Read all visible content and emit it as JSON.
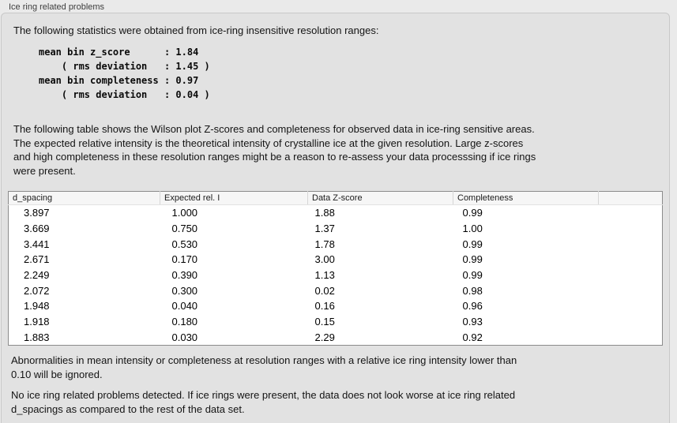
{
  "panel": {
    "title": "Ice ring related problems"
  },
  "intro": "The following statistics were obtained from ice-ring insensitive resolution ranges:",
  "stats": {
    "lines": [
      "mean bin z_score      : 1.84",
      "    ( rms deviation   : 1.45 )",
      "mean bin completeness : 0.97",
      "    ( rms deviation   : 0.04 )"
    ]
  },
  "description": {
    "lines": [
      "The following table shows the Wilson plot Z-scores and completeness for observed data in ice-ring sensitive areas.",
      "The expected relative intensity is the theoretical intensity of crystalline ice at the given resolution. Large z-scores",
      "and high completeness in these resolution ranges might be a reason to re-assess your data processsing if ice rings",
      "were present."
    ]
  },
  "table": {
    "headers": [
      "d_spacing",
      "Expected rel. I",
      "Data Z-score",
      "Completeness",
      ""
    ],
    "rows": [
      [
        "3.897",
        "1.000",
        "1.88",
        "0.99"
      ],
      [
        "3.669",
        "0.750",
        "1.37",
        "1.00"
      ],
      [
        "3.441",
        "0.530",
        "1.78",
        "0.99"
      ],
      [
        "2.671",
        "0.170",
        "3.00",
        "0.99"
      ],
      [
        "2.249",
        "0.390",
        "1.13",
        "0.99"
      ],
      [
        "2.072",
        "0.300",
        "0.02",
        "0.98"
      ],
      [
        "1.948",
        "0.040",
        "0.16",
        "0.96"
      ],
      [
        "1.918",
        "0.180",
        "0.15",
        "0.93"
      ],
      [
        "1.883",
        "0.030",
        "2.29",
        "0.92"
      ]
    ]
  },
  "ignore_note": {
    "lines": [
      "Abnormalities in mean intensity or completeness at resolution ranges with a relative ice ring intensity lower than",
      "0.10 will be ignored."
    ]
  },
  "conclusion": {
    "lines": [
      "No ice ring related problems detected. If ice rings were present, the data does not look worse at ice ring related",
      "d_spacings as compared to the rest of the data set."
    ]
  },
  "colors": {
    "page_background": "#eaeaea",
    "panel_background": "#e2e2e2",
    "panel_border": "#c8c8c8",
    "table_background": "#ffffff",
    "table_border": "#8b8b8b",
    "table_header_background": "#f6f6f6",
    "text": "#141414"
  }
}
